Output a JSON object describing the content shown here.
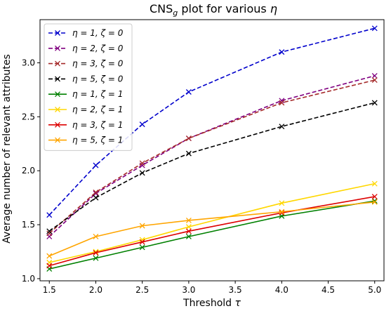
{
  "chart_data": {
    "type": "line",
    "title": "CNS",
    "title_subscript": "g",
    "title_rest": " plot for various ",
    "title_symbol": "η",
    "xlabel": "Threshold",
    "xlabel_symbol": "τ",
    "ylabel": "Average number of relevant attributes",
    "x": [
      1.5,
      2.0,
      2.5,
      3.0,
      4.0,
      5.0
    ],
    "xlim": [
      1.4,
      5.1
    ],
    "ylim": [
      0.98,
      3.4
    ],
    "xticks": [
      "1.5",
      "2.0",
      "2.5",
      "3.0",
      "3.5",
      "4.0",
      "4.5",
      "5.0"
    ],
    "yticks": [
      "1.0",
      "1.5",
      "2.0",
      "2.5",
      "3.0"
    ],
    "grid": false,
    "legend_position": "top-left",
    "series": [
      {
        "name": "η = 1, ζ = 0",
        "color": "#0000cc",
        "dashed": true,
        "values": [
          1.59,
          2.05,
          2.43,
          2.73,
          3.1,
          3.32
        ]
      },
      {
        "name": "η = 2, ζ = 0",
        "color": "#800080",
        "dashed": true,
        "values": [
          1.39,
          1.79,
          2.05,
          2.3,
          2.65,
          2.88
        ]
      },
      {
        "name": "η = 3, ζ = 0",
        "color": "#a52a2a",
        "dashed": true,
        "values": [
          1.42,
          1.8,
          2.07,
          2.3,
          2.63,
          2.84
        ]
      },
      {
        "name": "η = 5, ζ = 0",
        "color": "#000000",
        "dashed": true,
        "values": [
          1.44,
          1.75,
          1.98,
          2.16,
          2.41,
          2.63
        ]
      },
      {
        "name": "η = 1, ζ = 1",
        "color": "#008000",
        "dashed": false,
        "values": [
          1.09,
          1.19,
          1.29,
          1.39,
          1.58,
          1.72
        ]
      },
      {
        "name": "η = 2, ζ = 1",
        "color": "#ffd700",
        "dashed": false,
        "values": [
          1.15,
          1.25,
          1.36,
          1.48,
          1.7,
          1.88
        ]
      },
      {
        "name": "η = 3, ζ = 1",
        "color": "#dd0000",
        "dashed": false,
        "values": [
          1.12,
          1.24,
          1.34,
          1.44,
          1.61,
          1.76
        ]
      },
      {
        "name": "η = 5, ζ = 1",
        "color": "#ffa500",
        "dashed": false,
        "values": [
          1.21,
          1.39,
          1.49,
          1.54,
          1.62,
          1.71
        ]
      }
    ]
  }
}
